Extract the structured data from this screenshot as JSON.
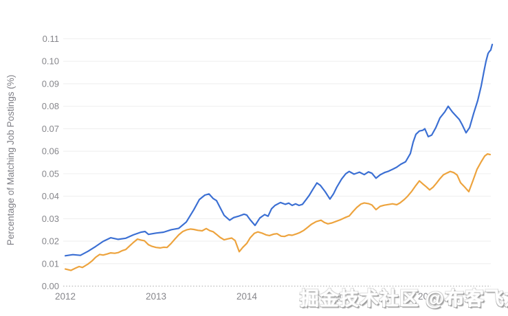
{
  "page": {
    "background": "#ffffff"
  },
  "watermark": {
    "text": "掘金技术社区 @布客飞龙"
  },
  "chart_data": {
    "type": "line",
    "title": "",
    "xlabel": "",
    "ylabel": "Percentage of Matching Job Postings (%)",
    "xlim": [
      2011.98,
      2016.72
    ],
    "ylim": [
      0,
      0.11
    ],
    "x_ticks": [
      2012,
      2013,
      2014,
      2015,
      2016
    ],
    "y_ticks": [
      0.0,
      0.01,
      0.02,
      0.03,
      0.04,
      0.05,
      0.06,
      0.07,
      0.08,
      0.09,
      0.1,
      0.11
    ],
    "grid": "horizontal-only",
    "legend": "none",
    "colors": {
      "gridline": "#efefef",
      "baseline_dotted": "#bbbbbb",
      "tick_text": "#86868b",
      "axis_title_text": "#7f7f86",
      "blue_series": "#3b6fd3",
      "orange_series": "#eda33d"
    },
    "series": [
      {
        "name": "blue",
        "color": "#3b6fd3",
        "points": [
          [
            2012.0,
            0.0135
          ],
          [
            2012.083,
            0.014
          ],
          [
            2012.167,
            0.0137
          ],
          [
            2012.25,
            0.0155
          ],
          [
            2012.333,
            0.0176
          ],
          [
            2012.417,
            0.0199
          ],
          [
            2012.5,
            0.0215
          ],
          [
            2012.583,
            0.0208
          ],
          [
            2012.667,
            0.0213
          ],
          [
            2012.75,
            0.0228
          ],
          [
            2012.833,
            0.024
          ],
          [
            2012.879,
            0.0243
          ],
          [
            2012.917,
            0.023
          ],
          [
            2013.0,
            0.0236
          ],
          [
            2013.083,
            0.024
          ],
          [
            2013.167,
            0.0251
          ],
          [
            2013.25,
            0.0257
          ],
          [
            2013.333,
            0.0285
          ],
          [
            2013.417,
            0.034
          ],
          [
            2013.477,
            0.0385
          ],
          [
            2013.538,
            0.0405
          ],
          [
            2013.583,
            0.041
          ],
          [
            2013.629,
            0.039
          ],
          [
            2013.667,
            0.038
          ],
          [
            2013.75,
            0.0315
          ],
          [
            2013.811,
            0.0293
          ],
          [
            2013.856,
            0.0305
          ],
          [
            2013.917,
            0.0312
          ],
          [
            2013.97,
            0.032
          ],
          [
            2014.0,
            0.0316
          ],
          [
            2014.038,
            0.0295
          ],
          [
            2014.091,
            0.027
          ],
          [
            2014.144,
            0.0303
          ],
          [
            2014.197,
            0.0318
          ],
          [
            2014.235,
            0.0311
          ],
          [
            2014.273,
            0.0344
          ],
          [
            2014.311,
            0.0359
          ],
          [
            2014.371,
            0.0372
          ],
          [
            2014.424,
            0.0364
          ],
          [
            2014.462,
            0.0369
          ],
          [
            2014.5,
            0.0359
          ],
          [
            2014.538,
            0.0366
          ],
          [
            2014.576,
            0.0359
          ],
          [
            2014.614,
            0.0364
          ],
          [
            2014.652,
            0.0384
          ],
          [
            2014.689,
            0.0404
          ],
          [
            2014.727,
            0.043
          ],
          [
            2014.773,
            0.0459
          ],
          [
            2014.811,
            0.0448
          ],
          [
            2014.864,
            0.042
          ],
          [
            2014.917,
            0.0387
          ],
          [
            2014.955,
            0.041
          ],
          [
            2014.992,
            0.044
          ],
          [
            2015.045,
            0.0476
          ],
          [
            2015.091,
            0.05
          ],
          [
            2015.129,
            0.051
          ],
          [
            2015.182,
            0.0498
          ],
          [
            2015.242,
            0.0507
          ],
          [
            2015.295,
            0.0496
          ],
          [
            2015.341,
            0.0508
          ],
          [
            2015.379,
            0.0502
          ],
          [
            2015.424,
            0.048
          ],
          [
            2015.47,
            0.0495
          ],
          [
            2015.523,
            0.0506
          ],
          [
            2015.561,
            0.0511
          ],
          [
            2015.614,
            0.0521
          ],
          [
            2015.652,
            0.0529
          ],
          [
            2015.697,
            0.0542
          ],
          [
            2015.75,
            0.0553
          ],
          [
            2015.803,
            0.059
          ],
          [
            2015.833,
            0.064
          ],
          [
            2015.864,
            0.0675
          ],
          [
            2015.902,
            0.069
          ],
          [
            2015.939,
            0.0693
          ],
          [
            2015.962,
            0.07
          ],
          [
            2016.0,
            0.0665
          ],
          [
            2016.038,
            0.0672
          ],
          [
            2016.083,
            0.0705
          ],
          [
            2016.129,
            0.0748
          ],
          [
            2016.182,
            0.0775
          ],
          [
            2016.22,
            0.08
          ],
          [
            2016.265,
            0.0775
          ],
          [
            2016.303,
            0.0758
          ],
          [
            2016.341,
            0.0742
          ],
          [
            2016.371,
            0.072
          ],
          [
            2016.417,
            0.0682
          ],
          [
            2016.455,
            0.0705
          ],
          [
            2016.5,
            0.0768
          ],
          [
            2016.545,
            0.0825
          ],
          [
            2016.583,
            0.089
          ],
          [
            2016.614,
            0.0955
          ],
          [
            2016.636,
            0.1
          ],
          [
            2016.659,
            0.1035
          ],
          [
            2016.674,
            0.1044
          ],
          [
            2016.689,
            0.105
          ],
          [
            2016.705,
            0.1075
          ]
        ]
      },
      {
        "name": "orange",
        "color": "#eda33d",
        "points": [
          [
            2012.0,
            0.0076
          ],
          [
            2012.061,
            0.007
          ],
          [
            2012.114,
            0.008
          ],
          [
            2012.152,
            0.0087
          ],
          [
            2012.189,
            0.0083
          ],
          [
            2012.25,
            0.0098
          ],
          [
            2012.295,
            0.0112
          ],
          [
            2012.333,
            0.0128
          ],
          [
            2012.379,
            0.0141
          ],
          [
            2012.417,
            0.0138
          ],
          [
            2012.462,
            0.0143
          ],
          [
            2012.5,
            0.0148
          ],
          [
            2012.545,
            0.0146
          ],
          [
            2012.583,
            0.0149
          ],
          [
            2012.629,
            0.0158
          ],
          [
            2012.667,
            0.0163
          ],
          [
            2012.712,
            0.018
          ],
          [
            2012.75,
            0.0194
          ],
          [
            2012.795,
            0.0209
          ],
          [
            2012.833,
            0.0205
          ],
          [
            2012.871,
            0.0202
          ],
          [
            2012.917,
            0.0184
          ],
          [
            2012.955,
            0.0177
          ],
          [
            2013.0,
            0.0172
          ],
          [
            2013.045,
            0.017
          ],
          [
            2013.083,
            0.0173
          ],
          [
            2013.121,
            0.0172
          ],
          [
            2013.167,
            0.019
          ],
          [
            2013.205,
            0.0208
          ],
          [
            2013.25,
            0.0228
          ],
          [
            2013.295,
            0.0243
          ],
          [
            2013.341,
            0.0251
          ],
          [
            2013.379,
            0.0254
          ],
          [
            2013.417,
            0.0252
          ],
          [
            2013.462,
            0.0248
          ],
          [
            2013.508,
            0.0246
          ],
          [
            2013.553,
            0.0256
          ],
          [
            2013.591,
            0.0247
          ],
          [
            2013.629,
            0.0242
          ],
          [
            2013.667,
            0.023
          ],
          [
            2013.705,
            0.0217
          ],
          [
            2013.75,
            0.0206
          ],
          [
            2013.788,
            0.021
          ],
          [
            2013.833,
            0.0214
          ],
          [
            2013.871,
            0.0203
          ],
          [
            2013.917,
            0.0153
          ],
          [
            2013.955,
            0.0172
          ],
          [
            2014.0,
            0.019
          ],
          [
            2014.038,
            0.0215
          ],
          [
            2014.083,
            0.0235
          ],
          [
            2014.121,
            0.0241
          ],
          [
            2014.167,
            0.0236
          ],
          [
            2014.212,
            0.0228
          ],
          [
            2014.25,
            0.0225
          ],
          [
            2014.295,
            0.0231
          ],
          [
            2014.333,
            0.0233
          ],
          [
            2014.379,
            0.0222
          ],
          [
            2014.417,
            0.0221
          ],
          [
            2014.462,
            0.0228
          ],
          [
            2014.5,
            0.0226
          ],
          [
            2014.545,
            0.0232
          ],
          [
            2014.583,
            0.0238
          ],
          [
            2014.629,
            0.0248
          ],
          [
            2014.667,
            0.026
          ],
          [
            2014.712,
            0.0275
          ],
          [
            2014.765,
            0.0287
          ],
          [
            2014.818,
            0.0293
          ],
          [
            2014.856,
            0.0283
          ],
          [
            2014.894,
            0.0277
          ],
          [
            2014.939,
            0.0281
          ],
          [
            2014.985,
            0.0288
          ],
          [
            2015.03,
            0.0295
          ],
          [
            2015.083,
            0.0305
          ],
          [
            2015.129,
            0.0312
          ],
          [
            2015.167,
            0.033
          ],
          [
            2015.212,
            0.035
          ],
          [
            2015.258,
            0.0365
          ],
          [
            2015.295,
            0.037
          ],
          [
            2015.341,
            0.0367
          ],
          [
            2015.379,
            0.0361
          ],
          [
            2015.424,
            0.034
          ],
          [
            2015.47,
            0.0355
          ],
          [
            2015.515,
            0.036
          ],
          [
            2015.561,
            0.0363
          ],
          [
            2015.606,
            0.0366
          ],
          [
            2015.652,
            0.0362
          ],
          [
            2015.689,
            0.037
          ],
          [
            2015.735,
            0.0385
          ],
          [
            2015.773,
            0.04
          ],
          [
            2015.818,
            0.0422
          ],
          [
            2015.864,
            0.0448
          ],
          [
            2015.902,
            0.0468
          ],
          [
            2015.939,
            0.0455
          ],
          [
            2015.977,
            0.0442
          ],
          [
            2016.015,
            0.0428
          ],
          [
            2016.053,
            0.044
          ],
          [
            2016.091,
            0.0458
          ],
          [
            2016.129,
            0.0478
          ],
          [
            2016.167,
            0.0495
          ],
          [
            2016.205,
            0.0503
          ],
          [
            2016.242,
            0.051
          ],
          [
            2016.28,
            0.0505
          ],
          [
            2016.318,
            0.0494
          ],
          [
            2016.356,
            0.046
          ],
          [
            2016.394,
            0.0444
          ],
          [
            2016.447,
            0.042
          ],
          [
            2016.492,
            0.0468
          ],
          [
            2016.538,
            0.052
          ],
          [
            2016.583,
            0.0553
          ],
          [
            2016.621,
            0.0578
          ],
          [
            2016.652,
            0.0588
          ],
          [
            2016.682,
            0.0585
          ]
        ]
      }
    ]
  }
}
